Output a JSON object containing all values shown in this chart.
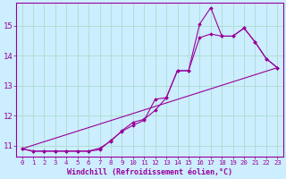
{
  "background_color": "#cceeff",
  "grid_color": "#aaddcc",
  "line_color": "#990099",
  "marker_color": "#990099",
  "xlabel": "Windchill (Refroidissement éolien,°C)",
  "xlabel_fontsize": 6,
  "ytick_fontsize": 6.5,
  "xtick_fontsize": 5.2,
  "xlim": [
    -0.5,
    23.5
  ],
  "ylim": [
    10.65,
    15.75
  ],
  "yticks": [
    11,
    12,
    13,
    14,
    15
  ],
  "xticks": [
    0,
    1,
    2,
    3,
    4,
    5,
    6,
    7,
    8,
    9,
    10,
    11,
    12,
    13,
    14,
    15,
    16,
    17,
    18,
    19,
    20,
    21,
    22,
    23
  ],
  "line1_x": [
    0,
    1,
    2,
    3,
    4,
    5,
    6,
    7,
    8,
    9,
    10,
    11,
    12,
    13,
    14,
    15,
    16,
    17,
    18,
    19,
    20,
    21,
    22,
    23
  ],
  "line1_y": [
    10.9,
    10.82,
    10.82,
    10.82,
    10.82,
    10.82,
    10.82,
    10.92,
    11.15,
    11.5,
    11.78,
    11.88,
    12.18,
    12.6,
    13.5,
    13.5,
    15.05,
    15.6,
    14.65,
    14.65,
    14.92,
    14.45,
    13.9,
    13.6
  ],
  "line2_x": [
    0,
    1,
    2,
    3,
    4,
    5,
    6,
    7,
    8,
    9,
    10,
    11,
    12,
    13,
    14,
    15,
    16,
    17,
    18,
    19,
    20,
    21,
    22,
    23
  ],
  "line2_y": [
    10.9,
    10.82,
    10.82,
    10.82,
    10.82,
    10.82,
    10.82,
    10.87,
    11.18,
    11.48,
    11.68,
    11.85,
    12.55,
    12.6,
    13.5,
    13.5,
    14.6,
    14.72,
    14.65,
    14.65,
    14.92,
    14.45,
    13.9,
    13.6
  ],
  "line3_x": [
    0,
    23
  ],
  "line3_y": [
    10.9,
    13.6
  ]
}
